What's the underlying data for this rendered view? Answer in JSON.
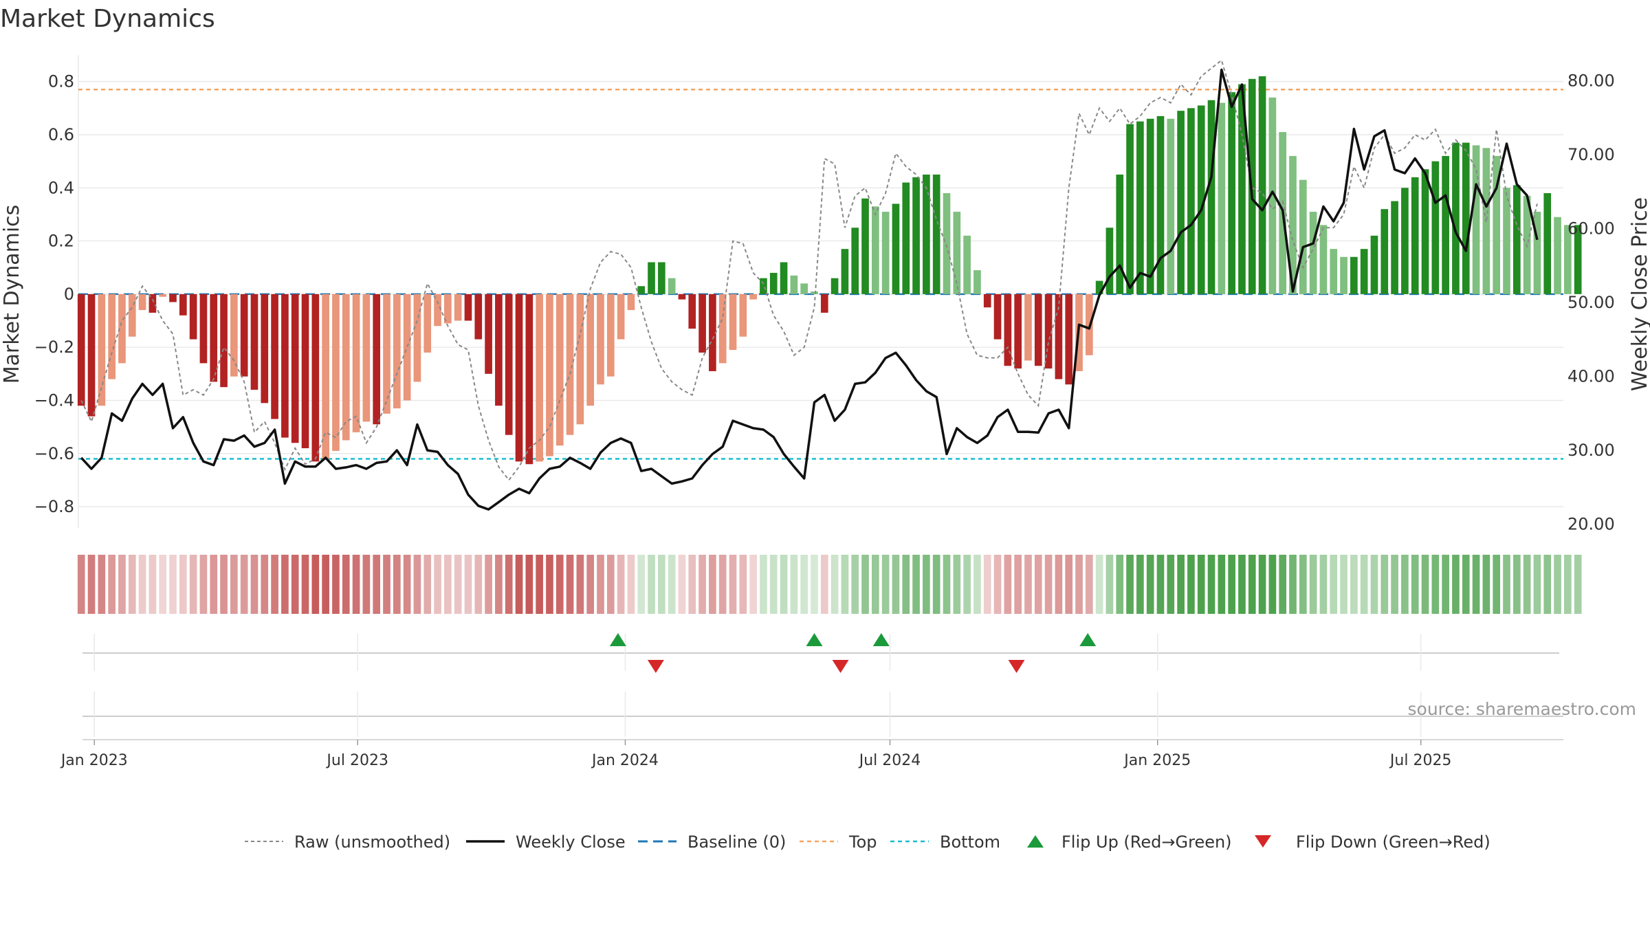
{
  "chart_data": {
    "type": "bar",
    "title": "Market Dynamics",
    "ylabel_left": "Market Dynamics",
    "ylabel_right": "Weekly Close Price",
    "ylim_left": [
      -0.88,
      0.9
    ],
    "ylim_right": [
      19.5,
      83.5
    ],
    "left_ticks": [
      -0.8,
      -0.6,
      -0.4,
      -0.2,
      0,
      0.2,
      0.4,
      0.6,
      0.8
    ],
    "left_tick_labels": [
      "−0.8",
      "−0.6",
      "−0.4",
      "−0.2",
      "0",
      "0.2",
      "0.4",
      "0.6",
      "0.8"
    ],
    "right_ticks": [
      20,
      30,
      40,
      50,
      60,
      70,
      80
    ],
    "right_tick_labels": [
      "20.00",
      "30.00",
      "40.00",
      "50.00",
      "60.00",
      "70.00",
      "80.00"
    ],
    "x_start": "2022-12-21",
    "x_end": "2025-10-07",
    "x_ticks": [
      {
        "date": "2023-01-01",
        "label": "Jan 2023"
      },
      {
        "date": "2023-07-01",
        "label": "Jul 2023"
      },
      {
        "date": "2024-01-01",
        "label": "Jan 2024"
      },
      {
        "date": "2024-07-01",
        "label": "Jul 2024"
      },
      {
        "date": "2025-01-01",
        "label": "Jan 2025"
      },
      {
        "date": "2025-07-01",
        "label": "Jul 2025"
      }
    ],
    "week_start": "2022-12-23",
    "week_step_days": 7,
    "top_level": 0.77,
    "bottom_level": -0.62,
    "baseline": 0,
    "smoothed": [
      -0.42,
      -0.46,
      -0.42,
      -0.32,
      -0.26,
      -0.16,
      -0.06,
      -0.07,
      -0.01,
      -0.03,
      -0.08,
      -0.17,
      -0.26,
      -0.33,
      -0.35,
      -0.31,
      -0.31,
      -0.36,
      -0.41,
      -0.47,
      -0.54,
      -0.56,
      -0.58,
      -0.63,
      -0.62,
      -0.59,
      -0.55,
      -0.52,
      -0.48,
      -0.49,
      -0.45,
      -0.43,
      -0.4,
      -0.33,
      -0.22,
      -0.12,
      -0.11,
      -0.1,
      -0.1,
      -0.17,
      -0.3,
      -0.42,
      -0.53,
      -0.63,
      -0.64,
      -0.63,
      -0.61,
      -0.57,
      -0.53,
      -0.49,
      -0.42,
      -0.34,
      -0.31,
      -0.17,
      -0.06,
      0.03,
      0.12,
      0.12,
      0.06,
      -0.02,
      -0.13,
      -0.22,
      -0.29,
      -0.26,
      -0.21,
      -0.16,
      -0.02,
      0.06,
      0.08,
      0.12,
      0.07,
      0.04,
      0.01,
      -0.07,
      0.06,
      0.17,
      0.25,
      0.36,
      0.33,
      0.31,
      0.34,
      0.42,
      0.44,
      0.45,
      0.45,
      0.38,
      0.31,
      0.22,
      0.09,
      -0.05,
      -0.17,
      -0.27,
      -0.28,
      -0.25,
      -0.27,
      -0.28,
      -0.32,
      -0.34,
      -0.29,
      -0.23,
      0.05,
      0.25,
      0.45,
      0.64,
      0.65,
      0.66,
      0.67,
      0.66,
      0.69,
      0.7,
      0.71,
      0.73,
      0.72,
      0.76,
      0.79,
      0.81,
      0.82,
      0.74,
      0.61,
      0.52,
      0.43,
      0.31,
      0.26,
      0.17,
      0.14,
      0.14,
      0.17,
      0.22,
      0.32,
      0.35,
      0.4,
      0.44,
      0.47,
      0.5,
      0.52,
      0.57,
      0.57,
      0.56,
      0.55,
      0.52,
      0.4,
      0.41,
      0.37,
      0.31,
      0.38,
      0.29,
      0.26,
      0.26
    ],
    "raw": [
      -0.4,
      -0.48,
      -0.35,
      -0.22,
      -0.1,
      -0.05,
      0.03,
      -0.02,
      -0.1,
      -0.15,
      -0.38,
      -0.36,
      -0.38,
      -0.32,
      -0.2,
      -0.25,
      -0.33,
      -0.52,
      -0.48,
      -0.56,
      -0.66,
      -0.58,
      -0.64,
      -0.62,
      -0.52,
      -0.54,
      -0.48,
      -0.46,
      -0.56,
      -0.5,
      -0.4,
      -0.3,
      -0.2,
      -0.1,
      0.04,
      -0.03,
      -0.12,
      -0.19,
      -0.21,
      -0.42,
      -0.55,
      -0.65,
      -0.7,
      -0.65,
      -0.58,
      -0.55,
      -0.5,
      -0.4,
      -0.3,
      -0.15,
      0.02,
      0.12,
      0.16,
      0.15,
      0.1,
      -0.05,
      -0.18,
      -0.28,
      -0.33,
      -0.36,
      -0.38,
      -0.24,
      -0.17,
      -0.09,
      0.2,
      0.19,
      0.08,
      0.04,
      -0.08,
      -0.14,
      -0.23,
      -0.2,
      -0.05,
      0.51,
      0.49,
      0.25,
      0.37,
      0.4,
      0.3,
      0.38,
      0.53,
      0.48,
      0.45,
      0.4,
      0.28,
      0.18,
      0.04,
      -0.15,
      -0.23,
      -0.24,
      -0.24,
      -0.2,
      -0.3,
      -0.38,
      -0.42,
      -0.18,
      -0.05,
      0.4,
      0.68,
      0.6,
      0.7,
      0.65,
      0.7,
      0.64,
      0.67,
      0.72,
      0.74,
      0.72,
      0.79,
      0.75,
      0.82,
      0.85,
      0.88,
      0.75,
      0.6,
      0.4,
      0.38,
      0.32,
      0.35,
      0.2,
      0.1,
      0.17,
      0.25,
      0.25,
      0.3,
      0.48,
      0.4,
      0.55,
      0.6,
      0.53,
      0.55,
      0.6,
      0.58,
      0.62,
      0.53,
      0.58,
      0.54,
      0.47,
      0.27,
      0.62,
      0.37,
      0.26,
      0.18,
      0.34
    ],
    "price": [
      29.0,
      27.5,
      29.0,
      35.0,
      34.0,
      37.0,
      39.0,
      37.5,
      39.0,
      33.0,
      34.5,
      31.0,
      28.5,
      28.0,
      31.5,
      31.3,
      32.0,
      30.5,
      31.0,
      32.8,
      25.5,
      28.5,
      27.8,
      27.8,
      29.0,
      27.5,
      27.7,
      28.0,
      27.5,
      28.3,
      28.5,
      30.0,
      28.0,
      33.5,
      30.0,
      29.8,
      28.0,
      26.8,
      24.0,
      22.5,
      22.0,
      23.0,
      24.0,
      24.8,
      24.2,
      26.2,
      27.5,
      27.8,
      29.0,
      28.3,
      27.5,
      29.7,
      31.0,
      31.6,
      31.0,
      27.2,
      27.5,
      26.5,
      25.5,
      25.8,
      26.2,
      28.0,
      29.5,
      30.5,
      34.0,
      33.5,
      33.0,
      32.8,
      31.8,
      29.5,
      27.8,
      26.2,
      36.5,
      37.5,
      34.0,
      35.5,
      39.0,
      39.2,
      40.5,
      42.5,
      43.2,
      41.5,
      39.5,
      38.0,
      37.2,
      29.5,
      33.0,
      31.8,
      31.0,
      32.0,
      34.5,
      35.5,
      32.5,
      32.5,
      32.4,
      35.0,
      35.5,
      33.0,
      47.0,
      46.5,
      51.0,
      53.5,
      55.0,
      52.0,
      54.0,
      53.5,
      56.0,
      57.0,
      59.5,
      60.5,
      62.5,
      67.0,
      81.5,
      76.5,
      79.5,
      64.0,
      62.5,
      65.0,
      62.5,
      51.5,
      57.5,
      58.0,
      63.0,
      61.0,
      63.5,
      73.5,
      68.0,
      72.5,
      73.3,
      68.0,
      67.5,
      69.5,
      67.5,
      63.5,
      64.5,
      59.5,
      57.0,
      66.0,
      63.0,
      65.5,
      71.5,
      66.0,
      64.5,
      58.5
    ],
    "markers": {
      "flip_up": [
        "2023-12-27",
        "2024-05-10",
        "2024-06-25",
        "2024-11-14"
      ],
      "flip_down": [
        "2024-01-22",
        "2024-05-28",
        "2024-09-26"
      ]
    },
    "legend": [
      {
        "key": "raw",
        "label": "Raw (unsmoothed)"
      },
      {
        "key": "close",
        "label": "Weekly Close"
      },
      {
        "key": "baseline",
        "label": "Baseline (0)"
      },
      {
        "key": "top",
        "label": "Top"
      },
      {
        "key": "bottom",
        "label": "Bottom"
      },
      {
        "key": "flip_up",
        "label": "Flip Up (Red→Green)"
      },
      {
        "key": "flip_down",
        "label": "Flip Down (Green→Red)"
      }
    ],
    "source": "source: sharemaestro.com",
    "colors": {
      "strong_red": "#b22222",
      "light_red": "#e9967a",
      "strong_green": "#228b22",
      "light_green": "#7fbf7f",
      "close_line": "#111111",
      "raw_line": "#888888",
      "baseline": "#1f77b4",
      "top": "#f4a460",
      "bottom": "#17becf",
      "flip_up": "#1a9a3a",
      "flip_down": "#d62728",
      "grid": "#e9e9e9",
      "axis": "#cccccc"
    }
  }
}
